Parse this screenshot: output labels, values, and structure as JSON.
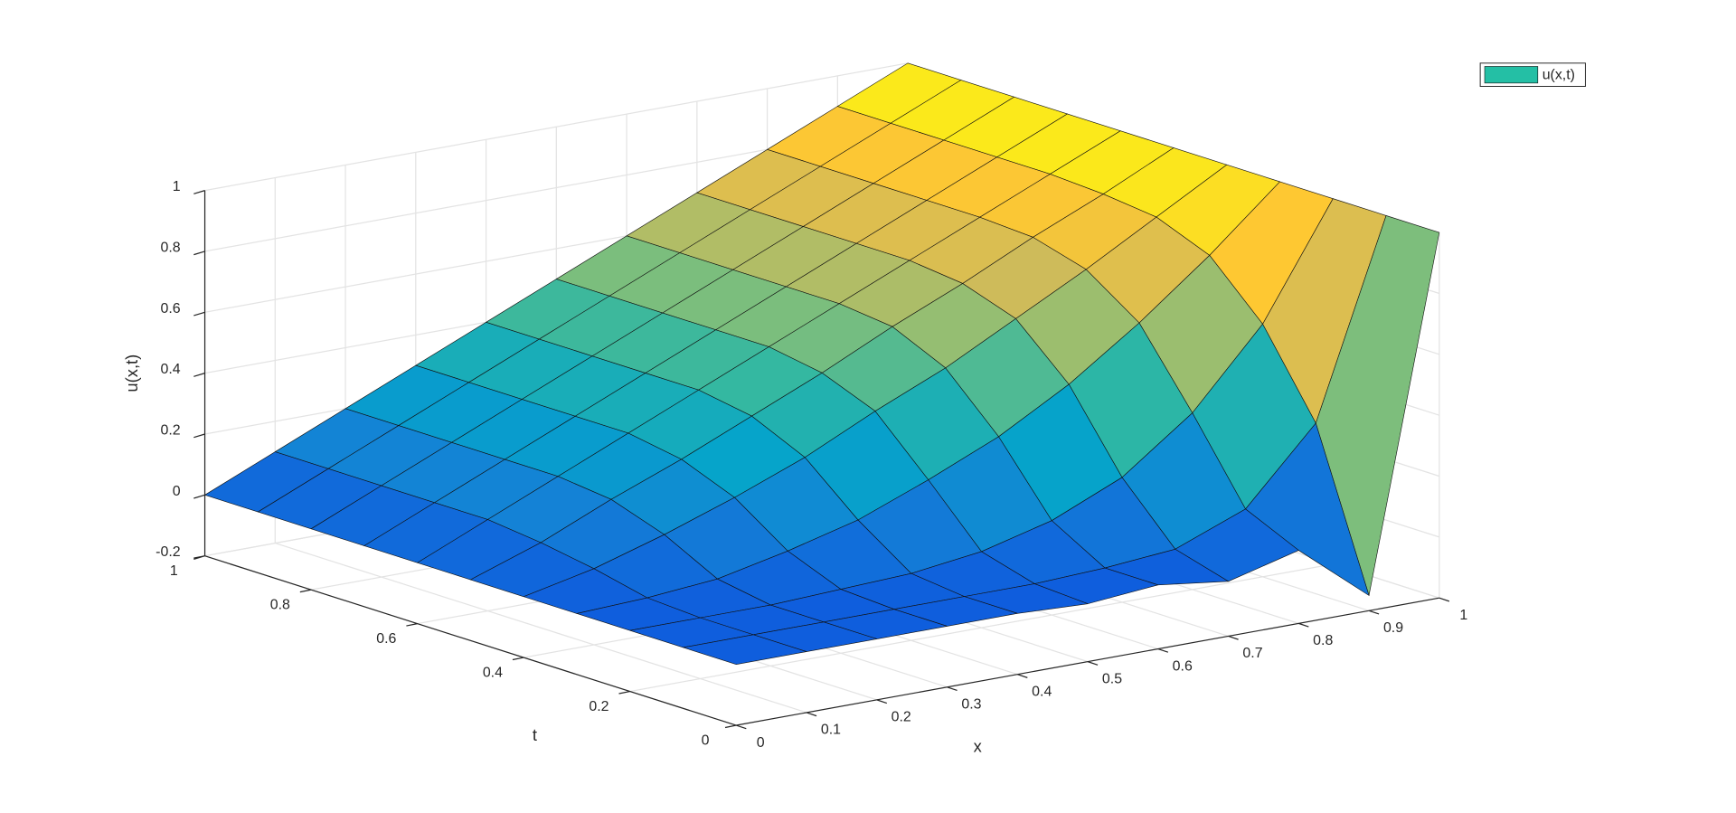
{
  "chart_data": {
    "type": "surface",
    "xlabel": "x",
    "ylabel": "t",
    "zlabel": "u(x,t)",
    "x": [
      0,
      0.1,
      0.2,
      0.3,
      0.4,
      0.5,
      0.6,
      0.7,
      0.8,
      0.9,
      1
    ],
    "y": [
      0,
      0.1,
      0.2,
      0.3,
      0.4,
      0.5,
      0.6,
      0.7,
      0.8,
      0.9,
      1
    ],
    "series": [
      {
        "name": "u(x,t)",
        "color": "#24bfa5",
        "z": [
          [
            0,
            0,
            0,
            0,
            0,
            -0.01,
            0.01,
            -0.02,
            0.04,
            -0.15,
            1
          ],
          [
            0,
            0,
            0,
            0,
            0,
            0,
            0.01,
            0.03,
            0.12,
            0.36,
            1
          ],
          [
            0,
            0,
            0,
            0.01,
            0.02,
            0.05,
            0.11,
            0.21,
            0.38,
            0.63,
            1
          ],
          [
            0,
            0.01,
            0.03,
            0.08,
            0.14,
            0.23,
            0.33,
            0.46,
            0.62,
            0.8,
            1
          ],
          [
            0,
            0.05,
            0.12,
            0.2,
            0.29,
            0.4,
            0.5,
            0.62,
            0.74,
            0.87,
            1
          ],
          [
            0,
            0.08,
            0.18,
            0.27,
            0.37,
            0.47,
            0.58,
            0.68,
            0.79,
            0.89,
            1
          ],
          [
            0,
            0.1,
            0.2,
            0.3,
            0.4,
            0.5,
            0.6,
            0.7,
            0.8,
            0.9,
            1
          ],
          [
            0,
            0.1,
            0.2,
            0.3,
            0.4,
            0.5,
            0.6,
            0.7,
            0.8,
            0.9,
            1
          ],
          [
            0,
            0.1,
            0.2,
            0.3,
            0.4,
            0.5,
            0.6,
            0.7,
            0.8,
            0.9,
            1
          ],
          [
            0,
            0.1,
            0.2,
            0.3,
            0.4,
            0.5,
            0.6,
            0.7,
            0.8,
            0.9,
            1
          ],
          [
            0,
            0.1,
            0.2,
            0.3,
            0.4,
            0.5,
            0.6,
            0.7,
            0.8,
            0.9,
            1
          ]
        ]
      }
    ],
    "colormap": "parula",
    "xlim": [
      0,
      1
    ],
    "ylim": [
      0,
      1
    ],
    "zlim": [
      -0.2,
      1
    ],
    "xticks": [
      0,
      0.1,
      0.2,
      0.3,
      0.4,
      0.5,
      0.6,
      0.7,
      0.8,
      0.9,
      1
    ],
    "yticks": [
      0,
      0.2,
      0.4,
      0.6,
      0.8,
      1
    ],
    "zticks": [
      -0.2,
      0,
      0.2,
      0.4,
      0.6,
      0.8,
      1
    ],
    "grid": true,
    "legend": "northeast"
  }
}
